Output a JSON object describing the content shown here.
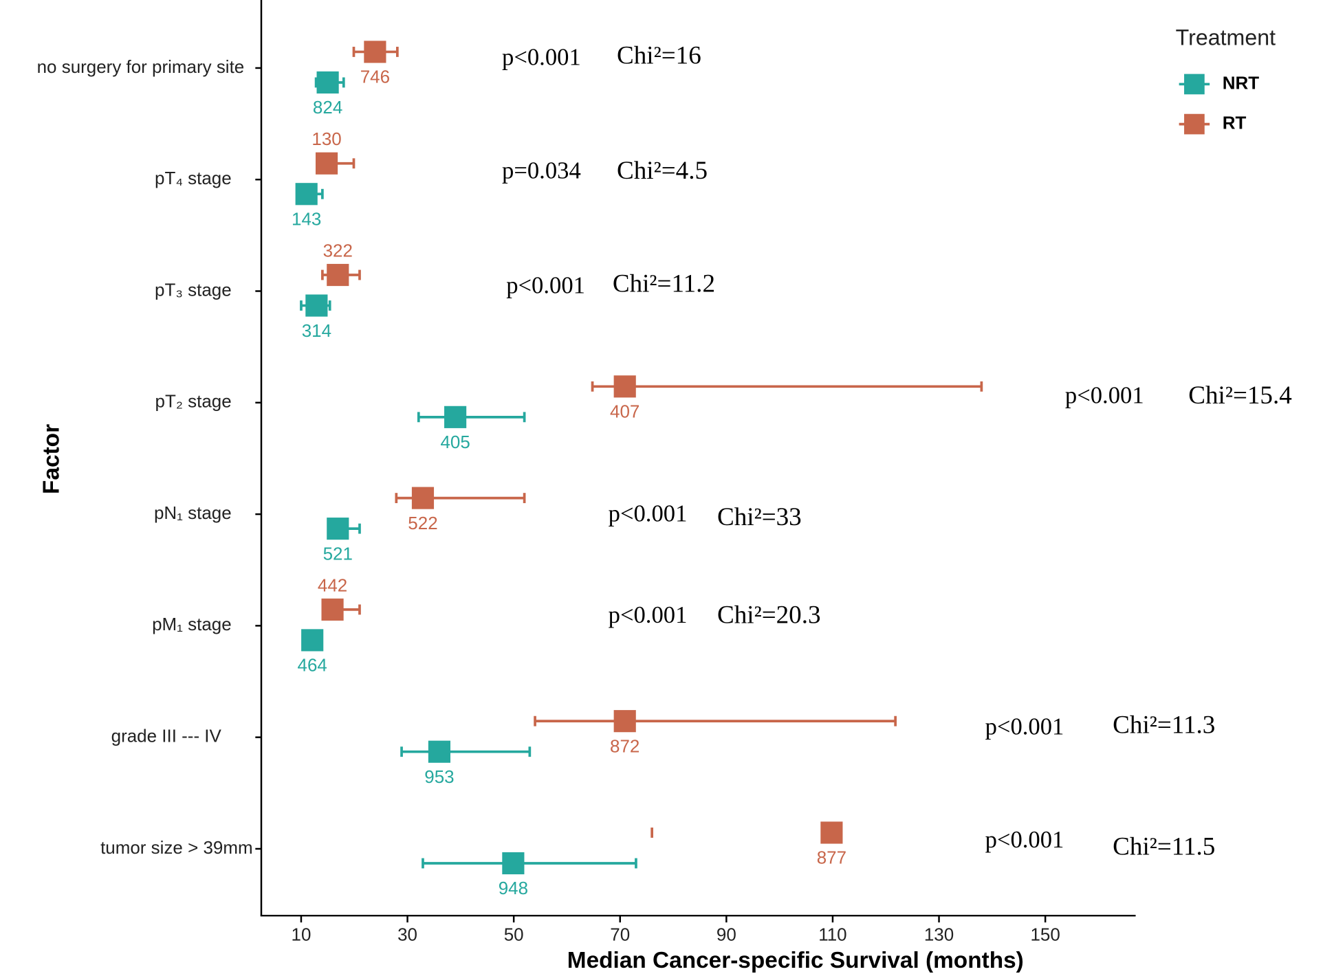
{
  "chart_data": {
    "type": "dot",
    "x_label": "Median Cancer-specific Survival (months)",
    "y_label": "Factor",
    "legend_title": "Treatment",
    "categories": [
      "no surgery for primary site",
      "pT₄  stage",
      "pT₃  stage",
      "pT₂  stage",
      "pN₁ stage",
      "pM₁ stage",
      "grade III --- IV",
      "tumor size > 39mm"
    ],
    "xlim": [
      2.5,
      167
    ],
    "xticks": [
      10,
      30,
      50,
      70,
      90,
      110,
      130,
      150
    ],
    "series": [
      {
        "name": "NRT",
        "color": "#25a89e",
        "values": [
          15.0,
          11.0,
          12.9,
          39.0,
          16.9,
          12.1,
          36.0,
          49.9
        ],
        "lower": [
          12.8,
          10.4,
          10.0,
          32.1,
          15.1,
          10.3,
          28.9,
          32.9
        ],
        "upper": [
          18.0,
          14.0,
          15.4,
          52.0,
          21.0,
          13.5,
          53.0,
          73.0
        ],
        "n": [
          "824",
          "143",
          "314",
          "405",
          "521",
          "464",
          "953",
          "948"
        ]
      },
      {
        "name": "RT",
        "color": "#c8664a",
        "values": [
          23.9,
          14.8,
          16.9,
          70.9,
          32.9,
          15.9,
          70.9,
          109.8
        ],
        "lower": [
          19.9,
          13.0,
          14.0,
          64.8,
          27.9,
          14.3,
          54.0,
          76.0
        ],
        "upper": [
          28.1,
          19.9,
          21.0,
          138.0,
          52.0,
          21.0,
          121.8,
          null
        ],
        "n": [
          "746",
          "130",
          "322",
          "407",
          "522",
          "442",
          "872",
          "877"
        ]
      }
    ],
    "annotations": [
      {
        "p": "p<0.001",
        "chi": "Chi²=16"
      },
      {
        "p": "p=0.034",
        "chi": "Chi²=4.5"
      },
      {
        "p": "p<0.001",
        "chi": "Chi²=11.2"
      },
      {
        "p": "p<0.001",
        "chi": "Chi²=15.4"
      },
      {
        "p": "p<0.001",
        "chi": "Chi²=33"
      },
      {
        "p": "p<0.001",
        "chi": "Chi²=20.3"
      },
      {
        "p": "p<0.001",
        "chi": "Chi²=11.3"
      },
      {
        "p": "p<0.001",
        "chi": "Chi²=11.5"
      }
    ]
  }
}
